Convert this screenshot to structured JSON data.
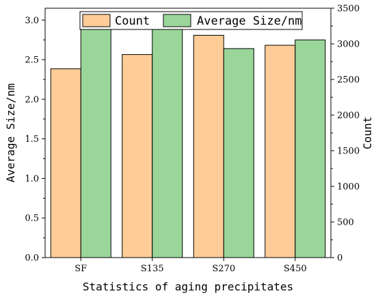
{
  "chart_data": {
    "type": "bar",
    "categories": [
      "SF",
      "S135",
      "S270",
      "S450"
    ],
    "series": [
      {
        "name": "Count",
        "axis": "right",
        "values": [
          2650,
          2850,
          3120,
          2980
        ],
        "color": "#FDCC97"
      },
      {
        "name": "Average Size/nm",
        "axis": "left",
        "values": [
          2.97,
          2.92,
          2.64,
          2.75
        ],
        "color": "#9AD59A"
      }
    ],
    "xlabel": "Statistics of aging precipitates",
    "ylabel_left": "Average Size/nm",
    "ylabel_right": "Count",
    "ylim_left": [
      0,
      3.15
    ],
    "ylim_right": [
      0,
      3500
    ],
    "yticks_left": [
      "0.0",
      "0.5",
      "1.0",
      "1.5",
      "2.0",
      "2.5",
      "3.0"
    ],
    "yticks_right": [
      "0",
      "500",
      "1000",
      "1500",
      "2000",
      "2500",
      "3000",
      "3500"
    ],
    "legend_position": "top-center",
    "grid": false
  }
}
